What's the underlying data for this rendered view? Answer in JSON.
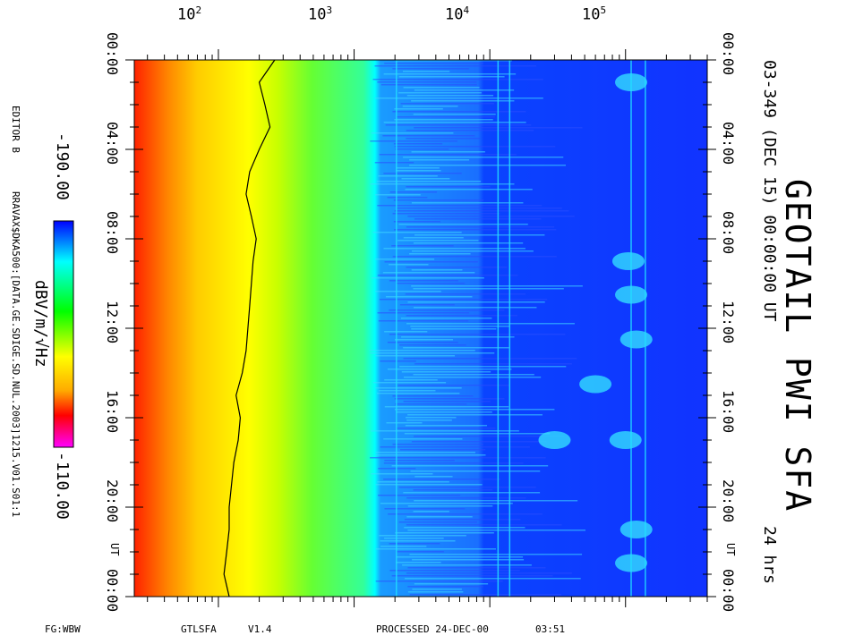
{
  "title": "GEOTAIL PWI SFA",
  "subtitle": "03-349 (DEC 15) 00:00:00 UT",
  "duration": "24 hrs",
  "editor": "EDITOR B",
  "file_path": "RRAVAX$DKA500:[DATA.GE.SDIGE.SD.NUL.2003]1215.V01.S01:1",
  "footer": {
    "left": "FG:WBW",
    "program": "GTLSFA",
    "version": "V1.4",
    "processed": "PROCESSED 24-DEC-00",
    "processed_time": "03:51"
  },
  "colorbar": {
    "min_label": "-190.00",
    "max_label": "-110.00",
    "unit": "dBV/m/√Hz",
    "min_value": -190,
    "max_value": -110,
    "colors": [
      "#ff00ff",
      "#ff0000",
      "#ffaa00",
      "#ffff00",
      "#00ff00",
      "#00ffff",
      "#0000ff"
    ]
  },
  "freq_axis": {
    "scale": "log",
    "tick_labels": [
      "10",
      "10",
      "10",
      "10"
    ],
    "tick_exponents": [
      "2",
      "3",
      "4",
      "5"
    ],
    "tick_values": [
      100,
      1000,
      10000,
      100000
    ],
    "range": [
      24,
      400000
    ]
  },
  "time_axis": {
    "tick_labels": [
      "00:00",
      "04:00",
      "08:00",
      "12:00",
      "16:00",
      "20:00",
      "00:00"
    ],
    "ut_label": "UT",
    "range_hours": [
      0,
      24
    ],
    "minor_step_hours": 1
  },
  "chart_data": {
    "type": "heatmap",
    "title": "GEOTAIL PWI SFA",
    "x_axis": {
      "quantity": "frequency",
      "unit": "Hz",
      "scale": "log",
      "range": [
        24,
        400000
      ],
      "ticks": [
        100,
        1000,
        10000,
        100000
      ]
    },
    "y_axis": {
      "quantity": "time",
      "unit": "UT",
      "range_hours": [
        0,
        24
      ],
      "ticks": [
        "00:00",
        "04:00",
        "08:00",
        "12:00",
        "16:00",
        "20:00",
        "00:00"
      ]
    },
    "z_axis": {
      "unit": "dBV/m/√Hz",
      "range": [
        -190,
        -110
      ]
    },
    "bands": [
      {
        "freq_range": [
          24,
          60
        ],
        "level": -115
      },
      {
        "freq_range": [
          60,
          180
        ],
        "level": -125
      },
      {
        "freq_range": [
          180,
          1300
        ],
        "level": -140
      },
      {
        "freq_range": [
          1300,
          3500
        ],
        "level": -160
      },
      {
        "freq_range": [
          3500,
          12000
        ],
        "level": -172
      },
      {
        "freq_range": [
          12000,
          400000
        ],
        "level": -186
      }
    ],
    "overlay_line": {
      "name": "",
      "times_hours": [
        0,
        1,
        2,
        3,
        4,
        5,
        6,
        7,
        8,
        9,
        10,
        11,
        12,
        13,
        14,
        15,
        16,
        17,
        18,
        19,
        20,
        21,
        22,
        23,
        24
      ],
      "freq_hz": [
        260,
        200,
        220,
        240,
        200,
        170,
        160,
        175,
        190,
        180,
        175,
        170,
        165,
        160,
        150,
        135,
        145,
        140,
        130,
        125,
        120,
        120,
        115,
        110,
        120
      ]
    },
    "vertical_lines_hz": [
      2050,
      11500,
      14000,
      110000,
      140000
    ],
    "patches": [
      {
        "freq_hz": 105000,
        "time_hours": 9.0,
        "level": -150
      },
      {
        "freq_hz": 110000,
        "time_hours": 10.5,
        "level": -155
      },
      {
        "freq_hz": 120000,
        "time_hours": 12.5,
        "level": -155
      },
      {
        "freq_hz": 60000,
        "time_hours": 14.5,
        "level": -160
      },
      {
        "freq_hz": 100000,
        "time_hours": 17.0,
        "level": -155
      },
      {
        "freq_hz": 30000,
        "time_hours": 17.0,
        "level": -160
      },
      {
        "freq_hz": 120000,
        "time_hours": 21.0,
        "level": -160
      },
      {
        "freq_hz": 110000,
        "time_hours": 22.5,
        "level": -160
      },
      {
        "freq_hz": 110000,
        "time_hours": 1.0,
        "level": -165
      }
    ]
  }
}
